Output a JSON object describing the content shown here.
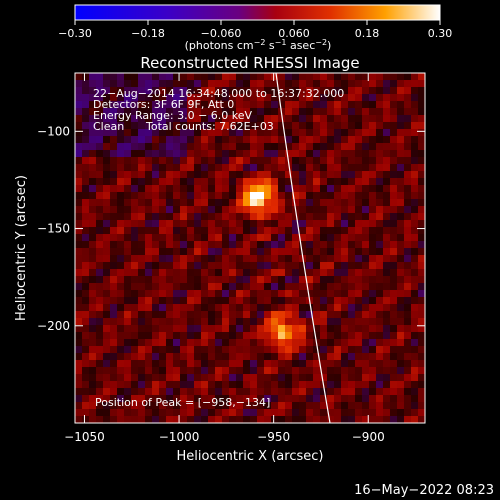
{
  "chart_data": {
    "type": "heatmap",
    "title": "Reconstructed RHESSI Image",
    "xlabel": "Heliocentric X (arcsec)",
    "ylabel": "Heliocentric Y (arcsec)",
    "xlim": [
      -1055,
      -870
    ],
    "ylim": [
      -250,
      -70
    ],
    "x_ticks": [
      -1050,
      -1000,
      -950,
      -900
    ],
    "x_tick_labels": [
      "−1050",
      "−1000",
      "−950",
      "−900"
    ],
    "y_ticks": [
      -100,
      -150,
      -200
    ],
    "y_tick_labels": [
      "−100",
      "−150",
      "−200"
    ],
    "colorbar": {
      "min": -0.3,
      "max": 0.3,
      "ticks": [
        -0.3,
        -0.18,
        -0.06,
        0.06,
        0.18,
        0.3
      ],
      "tick_labels": [
        "−0.30",
        "−0.18",
        "−0.060",
        "0.060",
        "0.18",
        "0.30"
      ],
      "unit_main": "(photons cm",
      "unit_sup1": "−2",
      "unit_mid": " s",
      "unit_sup2": "−1",
      "unit_mid2": " asec",
      "unit_sup3": "−2",
      "unit_end": ")"
    },
    "annotations": {
      "time_range": "22−Aug−2014 16:34:48.000 to 16:37:32.000",
      "detectors": "Detectors: 3F 6F 9F, Att 0",
      "energy": "Energy Range: 3.0 − 6.0 keV",
      "clean": "Clean",
      "counts": "Total counts: 7.62E+03",
      "peak": "Position of Peak = [−958,−134]"
    },
    "sources": [
      {
        "x": -958,
        "y": -134,
        "peak": 0.3
      },
      {
        "x": -945,
        "y": -203,
        "peak": 0.22
      }
    ],
    "peak_position": [
      -958,
      -134
    ],
    "limb": true
  },
  "footer": {
    "date": "16−May−2022 08:23"
  }
}
